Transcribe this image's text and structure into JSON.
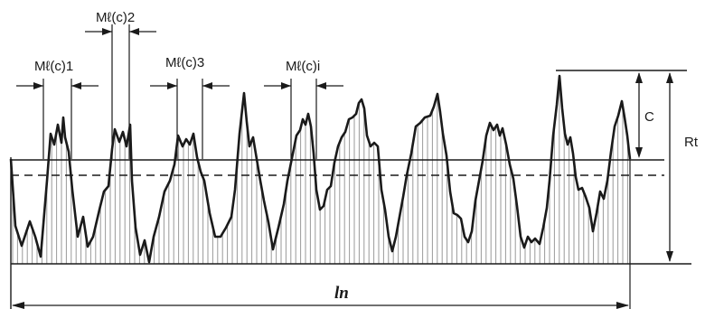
{
  "labels": {
    "ml1": "Mℓ(c)1",
    "ml2": "Mℓ(c)2",
    "ml3": "Mℓ(c)3",
    "mli": "Mℓ(c)i",
    "c": "C",
    "rt": "Rt",
    "ln": "ln"
  },
  "colors": {
    "ink": "#1a1a1a",
    "hatch": "#9a9a9a"
  }
}
